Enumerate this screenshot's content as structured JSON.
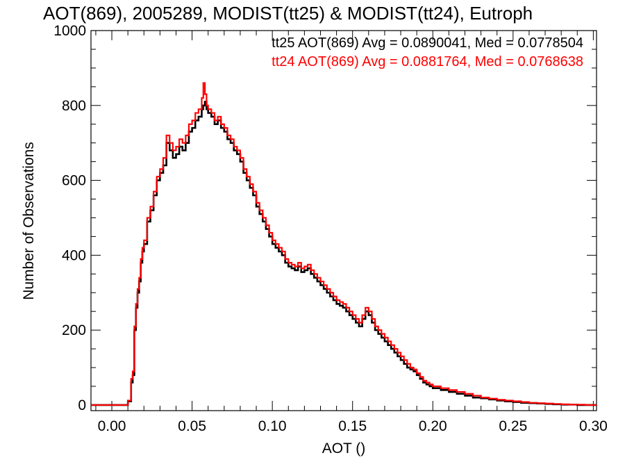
{
  "chart_data": {
    "type": "line",
    "step": true,
    "title": "AOT(869), 2005289, MODIST(tt25) & MODIST(tt24), Eutroph",
    "xlabel": "AOT ()",
    "ylabel": "Number of Observations",
    "xlim": [
      -0.013,
      0.302
    ],
    "ylim": [
      -15,
      1000
    ],
    "x_ticks": [
      0.0,
      0.05,
      0.1,
      0.15,
      0.2,
      0.25,
      0.3
    ],
    "x_tick_labels": [
      "0.00",
      "0.05",
      "0.10",
      "0.15",
      "0.20",
      "0.25",
      "0.30"
    ],
    "y_ticks": [
      0,
      200,
      400,
      600,
      800,
      1000
    ],
    "y_tick_labels": [
      "0",
      "200",
      "400",
      "600",
      "800",
      "1000"
    ],
    "grid": false,
    "legend_position": "top-right",
    "series": [
      {
        "name": "tt25",
        "color": "#000000",
        "legend_text": "tt25 AOT(869) Avg = 0.0890041, Med = 0.0778504",
        "x": [
          -0.013,
          0.0,
          0.01,
          0.012,
          0.013,
          0.014,
          0.015,
          0.016,
          0.017,
          0.018,
          0.019,
          0.02,
          0.022,
          0.024,
          0.026,
          0.028,
          0.03,
          0.032,
          0.034,
          0.036,
          0.038,
          0.04,
          0.042,
          0.044,
          0.046,
          0.048,
          0.05,
          0.052,
          0.054,
          0.056,
          0.057,
          0.058,
          0.059,
          0.06,
          0.062,
          0.064,
          0.066,
          0.068,
          0.07,
          0.072,
          0.074,
          0.076,
          0.078,
          0.08,
          0.082,
          0.084,
          0.086,
          0.088,
          0.09,
          0.092,
          0.094,
          0.096,
          0.098,
          0.1,
          0.102,
          0.104,
          0.106,
          0.108,
          0.11,
          0.112,
          0.114,
          0.116,
          0.118,
          0.12,
          0.122,
          0.124,
          0.126,
          0.128,
          0.13,
          0.132,
          0.134,
          0.136,
          0.138,
          0.14,
          0.142,
          0.144,
          0.146,
          0.148,
          0.15,
          0.152,
          0.154,
          0.156,
          0.158,
          0.16,
          0.162,
          0.164,
          0.166,
          0.168,
          0.17,
          0.172,
          0.174,
          0.176,
          0.178,
          0.18,
          0.182,
          0.184,
          0.186,
          0.188,
          0.19,
          0.192,
          0.194,
          0.196,
          0.198,
          0.2,
          0.205,
          0.21,
          0.215,
          0.22,
          0.225,
          0.23,
          0.235,
          0.24,
          0.245,
          0.25,
          0.255,
          0.26,
          0.265,
          0.27,
          0.275,
          0.28,
          0.285,
          0.29,
          0.295,
          0.3
        ],
        "y": [
          0,
          0,
          10,
          60,
          80,
          200,
          260,
          300,
          330,
          380,
          410,
          430,
          490,
          520,
          560,
          600,
          620,
          640,
          700,
          680,
          660,
          670,
          690,
          680,
          700,
          730,
          740,
          760,
          770,
          790,
          800,
          810,
          790,
          780,
          770,
          750,
          760,
          740,
          730,
          710,
          700,
          680,
          670,
          650,
          620,
          600,
          580,
          560,
          530,
          510,
          490,
          470,
          450,
          430,
          420,
          410,
          400,
          380,
          370,
          365,
          360,
          370,
          355,
          360,
          365,
          350,
          340,
          330,
          320,
          310,
          300,
          290,
          280,
          270,
          265,
          260,
          250,
          240,
          230,
          220,
          210,
          230,
          250,
          240,
          220,
          200,
          190,
          180,
          170,
          160,
          150,
          140,
          130,
          120,
          110,
          100,
          95,
          90,
          80,
          70,
          60,
          55,
          50,
          45,
          40,
          35,
          30,
          25,
          20,
          18,
          15,
          12,
          10,
          8,
          6,
          5,
          4,
          3,
          2,
          1,
          1,
          0,
          0,
          0
        ]
      },
      {
        "name": "tt24",
        "color": "#ff0000",
        "legend_text": "tt24 AOT(869) Avg = 0.0881764, Med = 0.0768638",
        "x": [
          -0.013,
          0.0,
          0.01,
          0.012,
          0.013,
          0.014,
          0.015,
          0.016,
          0.017,
          0.018,
          0.019,
          0.02,
          0.022,
          0.024,
          0.026,
          0.028,
          0.03,
          0.032,
          0.034,
          0.036,
          0.038,
          0.04,
          0.042,
          0.044,
          0.046,
          0.048,
          0.05,
          0.052,
          0.054,
          0.056,
          0.057,
          0.058,
          0.059,
          0.06,
          0.062,
          0.064,
          0.066,
          0.068,
          0.07,
          0.072,
          0.074,
          0.076,
          0.078,
          0.08,
          0.082,
          0.084,
          0.086,
          0.088,
          0.09,
          0.092,
          0.094,
          0.096,
          0.098,
          0.1,
          0.102,
          0.104,
          0.106,
          0.108,
          0.11,
          0.112,
          0.114,
          0.116,
          0.118,
          0.12,
          0.122,
          0.124,
          0.126,
          0.128,
          0.13,
          0.132,
          0.134,
          0.136,
          0.138,
          0.14,
          0.142,
          0.144,
          0.146,
          0.148,
          0.15,
          0.152,
          0.154,
          0.156,
          0.158,
          0.16,
          0.162,
          0.164,
          0.166,
          0.168,
          0.17,
          0.172,
          0.174,
          0.176,
          0.178,
          0.18,
          0.182,
          0.184,
          0.186,
          0.188,
          0.19,
          0.192,
          0.194,
          0.196,
          0.198,
          0.2,
          0.205,
          0.21,
          0.215,
          0.22,
          0.225,
          0.23,
          0.235,
          0.24,
          0.245,
          0.25,
          0.255,
          0.26,
          0.265,
          0.27,
          0.275,
          0.28,
          0.285,
          0.29,
          0.295,
          0.3
        ],
        "y": [
          0,
          0,
          12,
          70,
          90,
          210,
          270,
          310,
          340,
          390,
          420,
          440,
          500,
          530,
          570,
          610,
          630,
          660,
          720,
          700,
          680,
          690,
          710,
          700,
          720,
          750,
          760,
          780,
          790,
          820,
          860,
          830,
          800,
          790,
          780,
          760,
          770,
          750,
          740,
          720,
          710,
          690,
          680,
          660,
          630,
          610,
          590,
          570,
          540,
          520,
          500,
          480,
          460,
          440,
          430,
          420,
          410,
          390,
          380,
          375,
          370,
          380,
          365,
          370,
          375,
          360,
          350,
          340,
          330,
          320,
          310,
          300,
          290,
          280,
          275,
          270,
          260,
          250,
          240,
          230,
          220,
          240,
          260,
          250,
          230,
          210,
          200,
          190,
          180,
          170,
          160,
          150,
          140,
          130,
          120,
          110,
          100,
          95,
          85,
          75,
          65,
          60,
          55,
          50,
          45,
          40,
          35,
          30,
          25,
          20,
          17,
          14,
          12,
          10,
          8,
          6,
          5,
          4,
          3,
          2,
          1,
          1,
          0,
          0
        ]
      }
    ]
  }
}
